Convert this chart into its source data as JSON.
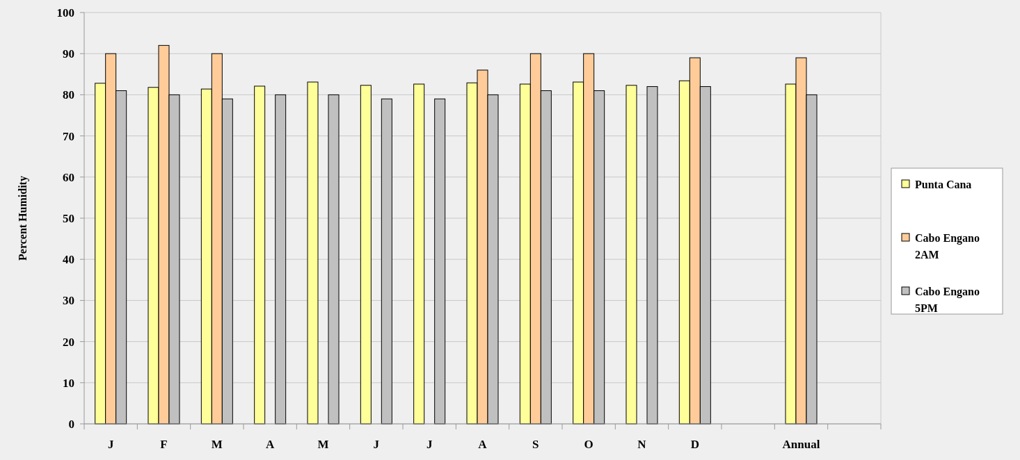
{
  "chart_data": {
    "type": "bar",
    "ylabel": "Percent Humidity",
    "categories": [
      "J",
      "F",
      "M",
      "A",
      "M",
      "J",
      "J",
      "A",
      "S",
      "O",
      "N",
      "D",
      null,
      "Annual",
      null
    ],
    "series": [
      {
        "name": "Punta Cana",
        "color": "#ffff99",
        "values": [
          82.8,
          81.8,
          81.4,
          82.1,
          83.1,
          82.3,
          82.6,
          82.9,
          82.6,
          83.1,
          82.3,
          83.4,
          null,
          82.6,
          null
        ]
      },
      {
        "name": "Cabo Engano 2AM",
        "color": "#ffcc99",
        "values": [
          90,
          92,
          90,
          null,
          null,
          null,
          null,
          86,
          90,
          90,
          null,
          89,
          null,
          89,
          null
        ]
      },
      {
        "name": "Cabo Engano 5PM",
        "color": "#c0c0c0",
        "values": [
          81,
          80,
          79,
          80,
          80,
          79,
          79,
          80,
          81,
          81,
          82,
          82,
          null,
          80,
          null
        ]
      }
    ],
    "ylim": [
      0,
      100
    ],
    "yticks": [
      0,
      10,
      20,
      30,
      40,
      50,
      60,
      70,
      80,
      90,
      100
    ],
    "grid": "y",
    "legend": "right"
  }
}
